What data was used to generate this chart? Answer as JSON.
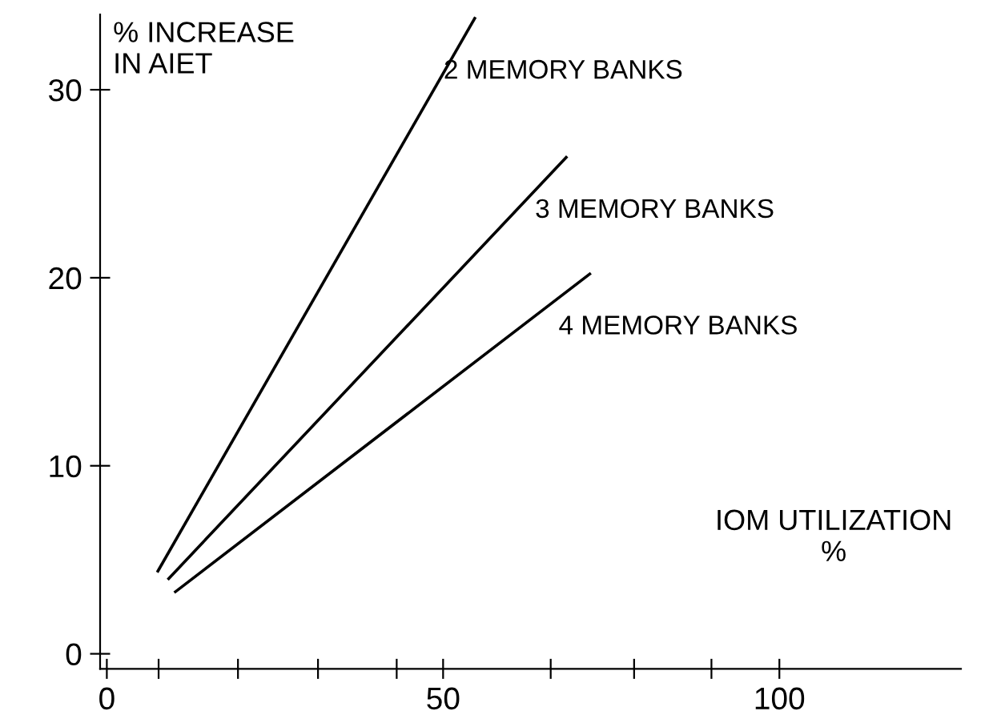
{
  "chart_data": {
    "type": "line",
    "xlabel": "IOM UTILIZATION\n%",
    "ylabel": "% INCREASE\nIN AIET",
    "series": [
      {
        "name": "2 MEMORY BANKS",
        "color": "#000000",
        "x": [
          7.6,
          54.7
        ],
        "values": [
          4.4,
          33.8
        ]
      },
      {
        "name": "3 MEMORY BANKS",
        "color": "#000000",
        "x": [
          9.2,
          68.3
        ],
        "values": [
          4.0,
          26.4
        ]
      },
      {
        "name": "4 MEMORY BANKS",
        "color": "#000000",
        "x": [
          10.2,
          71.8
        ],
        "values": [
          3.3,
          20.2
        ]
      }
    ],
    "xlim": [
      -1,
      127
    ],
    "ylim": [
      -0.8,
      34
    ],
    "xticks": [
      0,
      {
        "value": 7.7,
        "label": null
      },
      {
        "value": 19.5,
        "label": null
      },
      {
        "value": 31.4,
        "label": null
      },
      {
        "value": 43.1,
        "label": null
      },
      50,
      {
        "value": 66,
        "label": null
      },
      {
        "value": 78.4,
        "label": null
      },
      {
        "value": 89.9,
        "label": null
      },
      100
    ],
    "yticks": [
      0,
      10,
      20,
      30
    ],
    "grid": false,
    "legend": false,
    "marker": "none",
    "line_style": "solid"
  }
}
